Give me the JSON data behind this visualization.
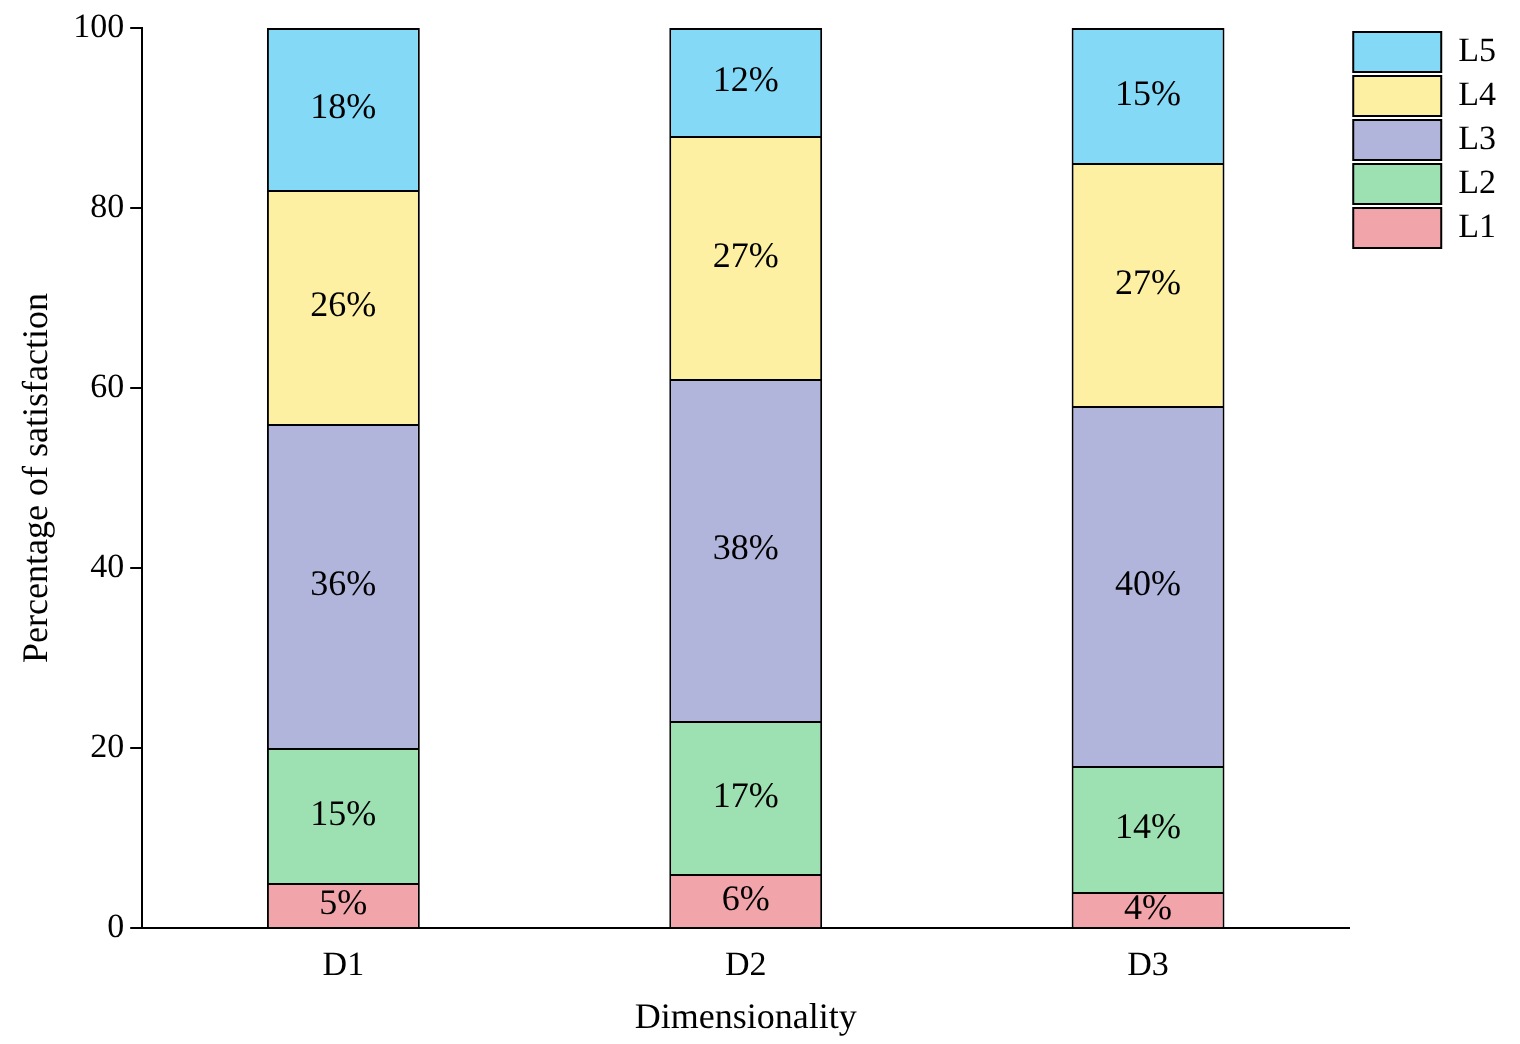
{
  "chart_data": {
    "type": "bar",
    "stacked": true,
    "xlabel": "Dimensionality",
    "ylabel": "Percentage of satisfaction",
    "categories": [
      "D1",
      "D2",
      "D3"
    ],
    "ylim": [
      0,
      100
    ],
    "yticks": [
      0,
      20,
      40,
      60,
      80,
      100
    ],
    "grid": false,
    "legend": "top right",
    "series": [
      {
        "name": "L1",
        "color": "#f2a4ab",
        "values": [
          5,
          6,
          4
        ],
        "value_labels": [
          "5%",
          "6%",
          "4%"
        ]
      },
      {
        "name": "L2",
        "color": "#9de0b1",
        "values": [
          15,
          17,
          14
        ],
        "value_labels": [
          "15%",
          "17%",
          "14%"
        ]
      },
      {
        "name": "L3",
        "color": "#b1b5dc",
        "values": [
          36,
          38,
          40
        ],
        "value_labels": [
          "36%",
          "38%",
          "40%"
        ]
      },
      {
        "name": "L4",
        "color": "#fdf0a2",
        "values": [
          26,
          27,
          27
        ],
        "value_labels": [
          "26%",
          "27%",
          "27%"
        ]
      },
      {
        "name": "L5",
        "color": "#84d9f7",
        "values": [
          18,
          12,
          15
        ],
        "value_labels": [
          "18%",
          "12%",
          "15%"
        ]
      }
    ]
  }
}
